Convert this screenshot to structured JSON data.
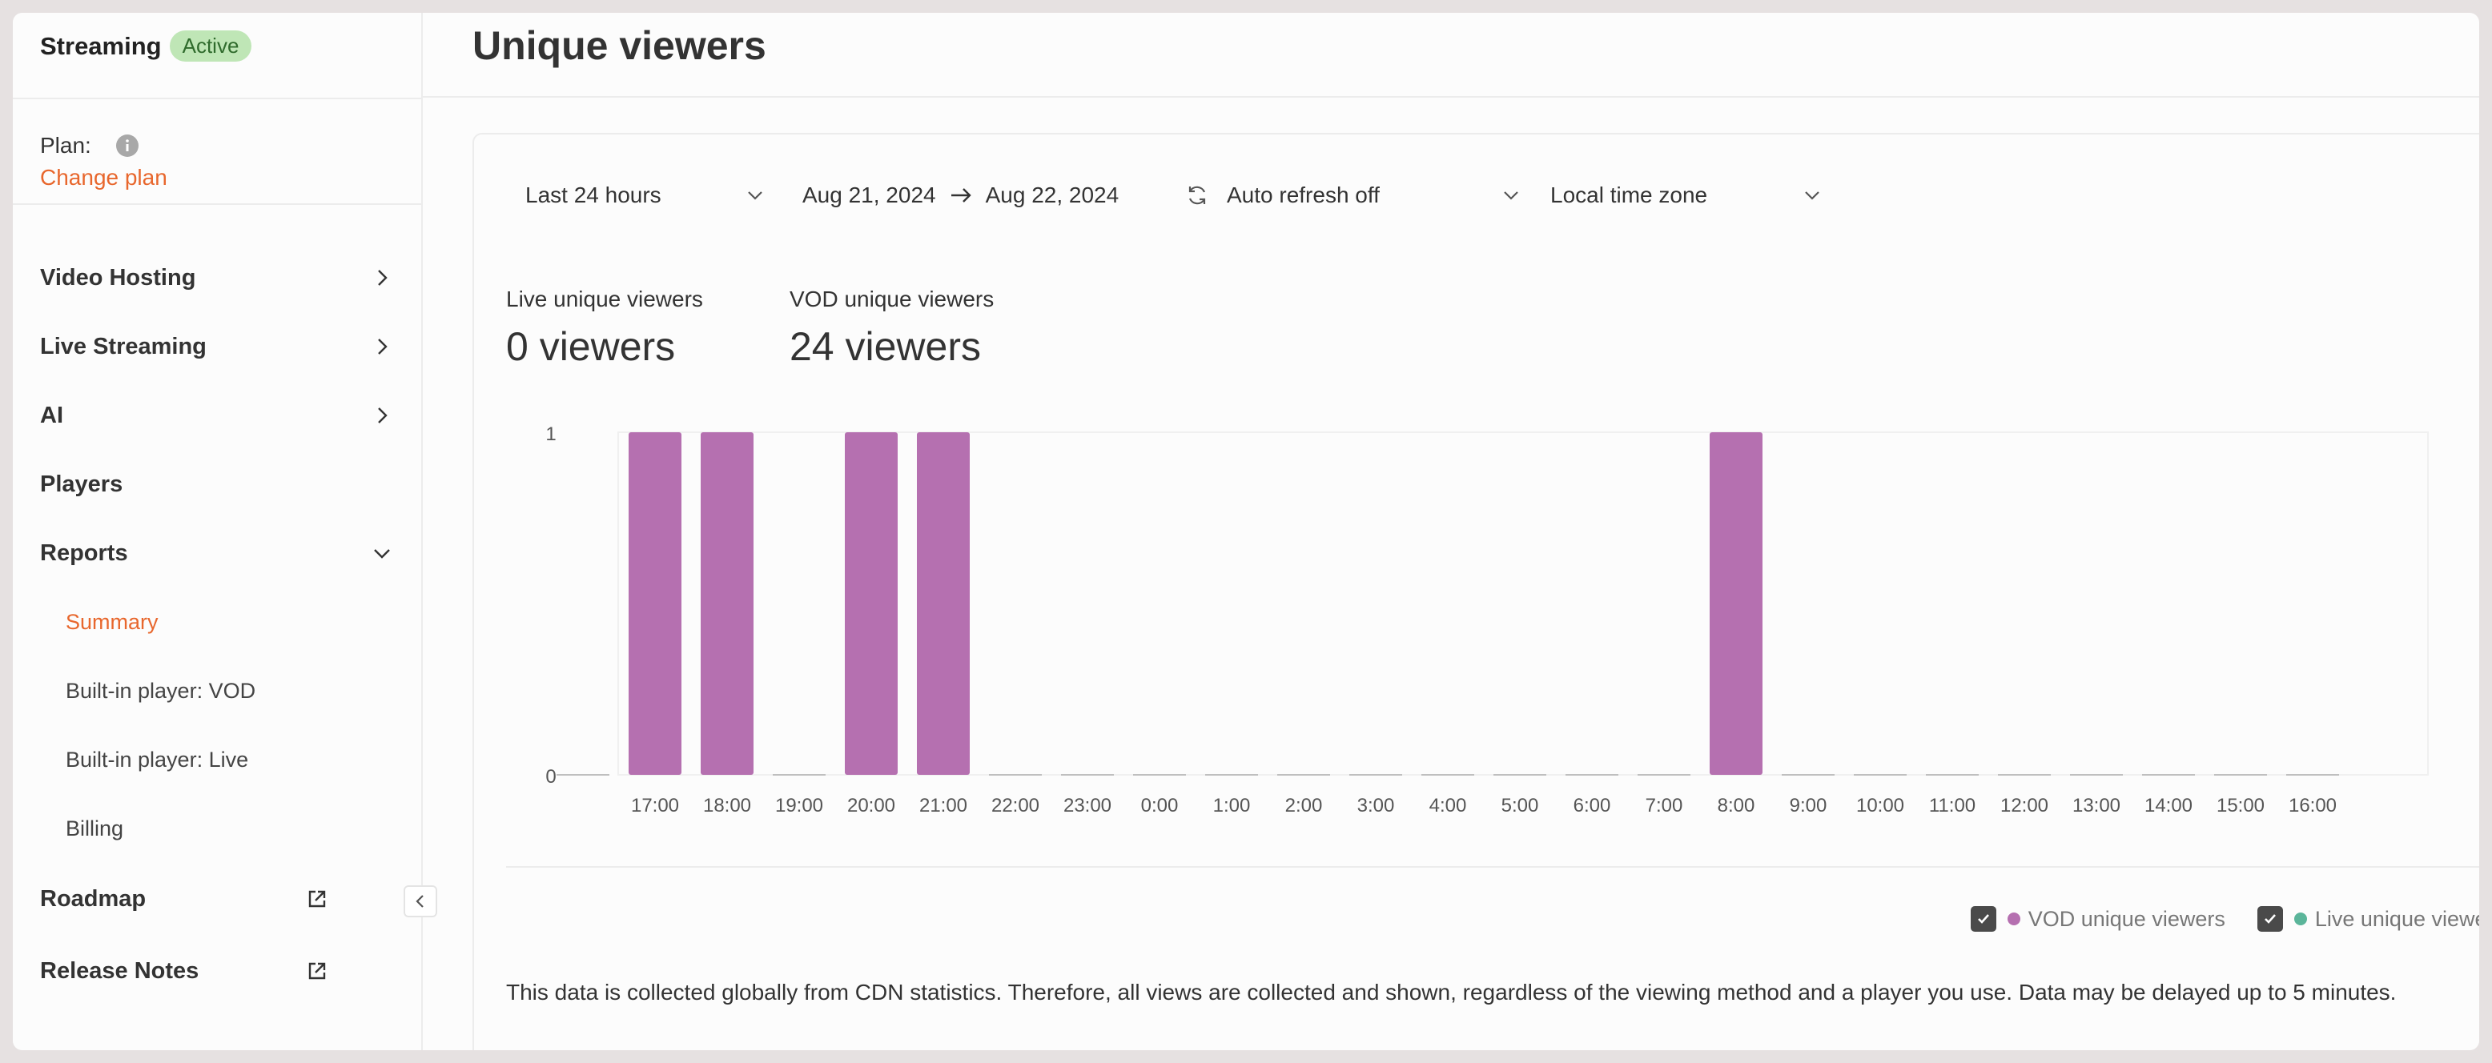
{
  "sidebar": {
    "brand": "Streaming",
    "badge": "Active",
    "plan_label": "Plan:",
    "change_plan": "Change plan",
    "items": [
      {
        "label": "Video Hosting"
      },
      {
        "label": "Live Streaming"
      },
      {
        "label": "AI"
      },
      {
        "label": "Players"
      },
      {
        "label": "Reports"
      },
      {
        "label": "Summary"
      },
      {
        "label": "Built-in player: VOD"
      },
      {
        "label": "Built-in player: Live"
      },
      {
        "label": "Billing"
      },
      {
        "label": "Roadmap"
      },
      {
        "label": "Release Notes"
      }
    ]
  },
  "page": {
    "title": "Unique viewers"
  },
  "toolbar": {
    "range": "Last 24 hours",
    "date_from": "Aug 21, 2024",
    "date_to": "Aug 22, 2024",
    "refresh": "Auto refresh off",
    "timezone": "Local time zone"
  },
  "stats": {
    "live_label": "Live unique viewers",
    "live_value": "0 viewers",
    "vod_label": "VOD unique viewers",
    "vod_value": "24 viewers"
  },
  "colors": {
    "accent": "#e8672d",
    "vod": "#b570b0",
    "live": "#5bb59a"
  },
  "chart_data": {
    "type": "bar",
    "categories": [
      "",
      "17:00",
      "18:00",
      "19:00",
      "20:00",
      "21:00",
      "22:00",
      "23:00",
      "0:00",
      "1:00",
      "2:00",
      "3:00",
      "4:00",
      "5:00",
      "6:00",
      "7:00",
      "8:00",
      "9:00",
      "10:00",
      "11:00",
      "12:00",
      "13:00",
      "14:00",
      "15:00",
      "16:00"
    ],
    "series": [
      {
        "name": "VOD unique viewers",
        "values": [
          0,
          1,
          1,
          0,
          1,
          1,
          0,
          0,
          0,
          0,
          0,
          0,
          0,
          0,
          0,
          0,
          1,
          0,
          0,
          0,
          0,
          0,
          0,
          0,
          0
        ]
      },
      {
        "name": "Live unique viewers",
        "values": [
          0,
          0,
          0,
          0,
          0,
          0,
          0,
          0,
          0,
          0,
          0,
          0,
          0,
          0,
          0,
          0,
          0,
          0,
          0,
          0,
          0,
          0,
          0,
          0,
          0
        ]
      }
    ],
    "yticks": [
      "0",
      "1"
    ],
    "ylim": [
      0,
      1
    ],
    "grid": true,
    "legend": "bottom-right"
  },
  "footnote": "This data is collected globally from CDN statistics. Therefore, all views are collected and shown, regardless of the viewing method and a player you use. Data may be delayed up to 5 minutes."
}
